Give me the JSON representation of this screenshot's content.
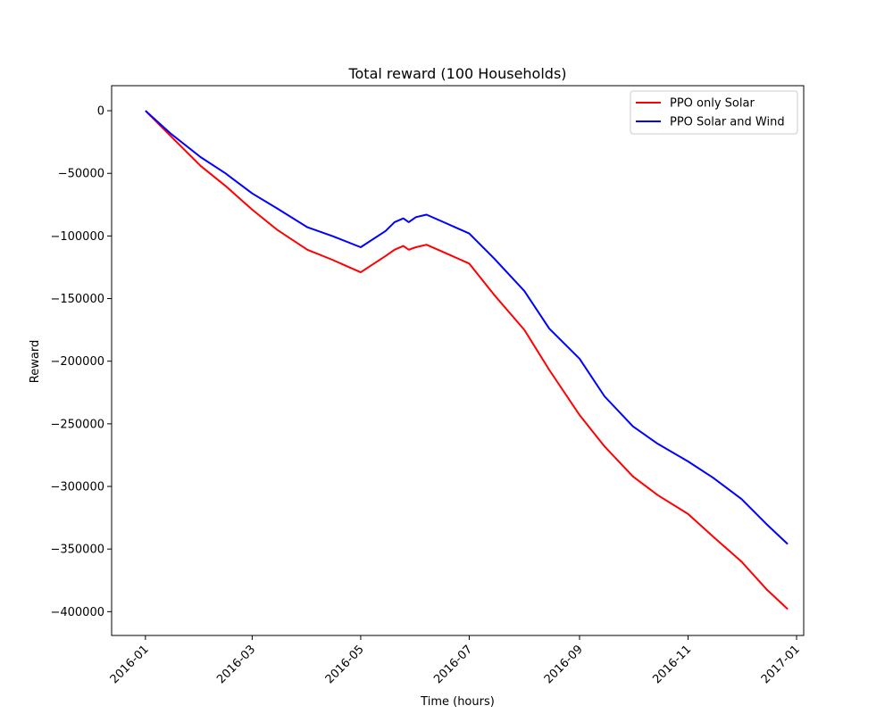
{
  "chart_data": {
    "type": "line",
    "title": "Total reward (100 Households)",
    "xlabel": "Time (hours)",
    "ylabel": "Reward",
    "xlim": [
      "2015-12-13",
      "2017-01-05"
    ],
    "ylim": [
      -419000,
      20000
    ],
    "x_ticks": [
      "2016-01",
      "2016-03",
      "2016-05",
      "2016-07",
      "2016-09",
      "2016-11",
      "2017-01"
    ],
    "y_ticks": [
      0,
      -50000,
      -100000,
      -150000,
      -200000,
      -250000,
      -300000,
      -350000,
      -400000
    ],
    "y_tick_labels": [
      "0",
      "−50000",
      "−100000",
      "−150000",
      "−200000",
      "−250000",
      "−300000",
      "−350000",
      "−400000"
    ],
    "grid": false,
    "legend_position": "top-right",
    "series": [
      {
        "name": "PPO only Solar",
        "color": "#ff0000",
        "points": [
          [
            "2016-01-01",
            0
          ],
          [
            "2016-01-15",
            -20000
          ],
          [
            "2016-02-01",
            -44000
          ],
          [
            "2016-02-15",
            -60000
          ],
          [
            "2016-03-01",
            -79000
          ],
          [
            "2016-03-15",
            -95000
          ],
          [
            "2016-04-01",
            -111000
          ],
          [
            "2016-04-15",
            -119000
          ],
          [
            "2016-05-01",
            -129000
          ],
          [
            "2016-05-15",
            -116000
          ],
          [
            "2016-05-20",
            -111000
          ],
          [
            "2016-05-25",
            -108000
          ],
          [
            "2016-05-28",
            -111000
          ],
          [
            "2016-06-01",
            -109000
          ],
          [
            "2016-06-07",
            -107000
          ],
          [
            "2016-06-15",
            -112000
          ],
          [
            "2016-07-01",
            -122000
          ],
          [
            "2016-07-15",
            -147000
          ],
          [
            "2016-08-01",
            -175000
          ],
          [
            "2016-08-15",
            -207000
          ],
          [
            "2016-09-01",
            -243000
          ],
          [
            "2016-09-15",
            -268000
          ],
          [
            "2016-10-01",
            -292000
          ],
          [
            "2016-10-15",
            -307000
          ],
          [
            "2016-11-01",
            -322000
          ],
          [
            "2016-11-15",
            -340000
          ],
          [
            "2016-12-01",
            -360000
          ],
          [
            "2016-12-15",
            -382000
          ],
          [
            "2016-12-27",
            -398000
          ]
        ]
      },
      {
        "name": "PPO Solar and Wind",
        "color": "#0000ff",
        "points": [
          [
            "2016-01-01",
            0
          ],
          [
            "2016-01-15",
            -18000
          ],
          [
            "2016-02-01",
            -37000
          ],
          [
            "2016-02-15",
            -50000
          ],
          [
            "2016-03-01",
            -66000
          ],
          [
            "2016-03-15",
            -78000
          ],
          [
            "2016-04-01",
            -93000
          ],
          [
            "2016-04-15",
            -100000
          ],
          [
            "2016-05-01",
            -109000
          ],
          [
            "2016-05-15",
            -96000
          ],
          [
            "2016-05-20",
            -89000
          ],
          [
            "2016-05-25",
            -86000
          ],
          [
            "2016-05-28",
            -89000
          ],
          [
            "2016-06-01",
            -85000
          ],
          [
            "2016-06-07",
            -83000
          ],
          [
            "2016-06-15",
            -88000
          ],
          [
            "2016-07-01",
            -98000
          ],
          [
            "2016-07-15",
            -118000
          ],
          [
            "2016-08-01",
            -144000
          ],
          [
            "2016-08-15",
            -174000
          ],
          [
            "2016-09-01",
            -198000
          ],
          [
            "2016-09-15",
            -228000
          ],
          [
            "2016-10-01",
            -252000
          ],
          [
            "2016-10-15",
            -266000
          ],
          [
            "2016-11-01",
            -280000
          ],
          [
            "2016-11-15",
            -293000
          ],
          [
            "2016-12-01",
            -310000
          ],
          [
            "2016-12-15",
            -330000
          ],
          [
            "2016-12-27",
            -346000
          ]
        ]
      }
    ]
  }
}
